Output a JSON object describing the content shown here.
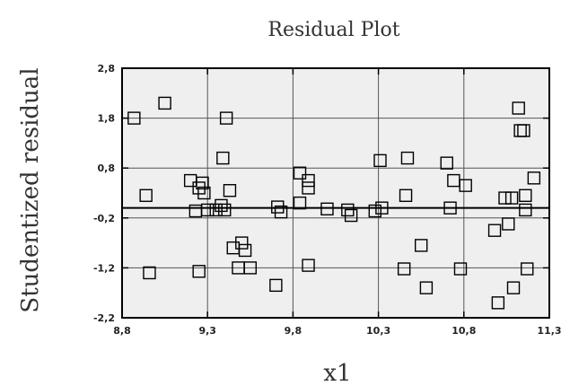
{
  "chart_data": {
    "type": "scatter",
    "title": "Residual Plot",
    "xlabel": "x1",
    "ylabel": "Studentized residual",
    "xlim": [
      8.8,
      11.3
    ],
    "ylim": [
      -2.2,
      2.8
    ],
    "x_ticks": [
      "8,8",
      "9,3",
      "9,8",
      "10,3",
      "10,8",
      "11,3"
    ],
    "y_ticks": [
      "2,8",
      "1,8",
      "0,8",
      "-0,2",
      "-1,2",
      "-2,2"
    ],
    "x_tick_values": [
      8.8,
      9.3,
      9.8,
      10.3,
      10.8,
      11.3
    ],
    "y_tick_values": [
      2.8,
      1.8,
      0.8,
      -0.2,
      -1.2,
      -2.2
    ],
    "grid": true,
    "reference_line_y": 0,
    "marker": "open-square",
    "points": [
      [
        8.87,
        1.8
      ],
      [
        8.94,
        0.25
      ],
      [
        8.96,
        -1.3
      ],
      [
        9.05,
        2.1
      ],
      [
        9.2,
        0.55
      ],
      [
        9.23,
        -0.06
      ],
      [
        9.25,
        0.4
      ],
      [
        9.25,
        -1.27
      ],
      [
        9.27,
        0.5
      ],
      [
        9.28,
        0.3
      ],
      [
        9.3,
        -0.04
      ],
      [
        9.35,
        -0.04
      ],
      [
        9.38,
        0.05
      ],
      [
        9.39,
        1.0
      ],
      [
        9.4,
        -0.04
      ],
      [
        9.41,
        1.8
      ],
      [
        9.43,
        0.35
      ],
      [
        9.45,
        -0.8
      ],
      [
        9.48,
        -1.2
      ],
      [
        9.5,
        -0.7
      ],
      [
        9.52,
        -0.85
      ],
      [
        9.55,
        -1.2
      ],
      [
        9.7,
        -1.55
      ],
      [
        9.71,
        0.02
      ],
      [
        9.73,
        -0.08
      ],
      [
        9.84,
        0.1
      ],
      [
        9.84,
        0.7
      ],
      [
        9.89,
        0.55
      ],
      [
        9.89,
        0.4
      ],
      [
        9.89,
        -1.15
      ],
      [
        10.0,
        -0.02
      ],
      [
        10.12,
        -0.04
      ],
      [
        10.14,
        -0.15
      ],
      [
        10.28,
        -0.06
      ],
      [
        10.31,
        0.95
      ],
      [
        10.32,
        -0.0
      ],
      [
        10.45,
        -1.22
      ],
      [
        10.46,
        0.25
      ],
      [
        10.47,
        1.0
      ],
      [
        10.55,
        -0.75
      ],
      [
        10.58,
        -1.6
      ],
      [
        10.7,
        0.9
      ],
      [
        10.72,
        0.0
      ],
      [
        10.74,
        0.55
      ],
      [
        10.78,
        -1.22
      ],
      [
        10.81,
        0.45
      ],
      [
        10.98,
        -0.45
      ],
      [
        11.0,
        -1.9
      ],
      [
        11.04,
        0.2
      ],
      [
        11.06,
        -0.32
      ],
      [
        11.08,
        0.2
      ],
      [
        11.09,
        -1.6
      ],
      [
        11.12,
        2.0
      ],
      [
        11.13,
        1.55
      ],
      [
        11.15,
        1.55
      ],
      [
        11.16,
        -0.04
      ],
      [
        11.16,
        0.25
      ],
      [
        11.17,
        -1.22
      ],
      [
        11.21,
        0.6
      ]
    ]
  }
}
